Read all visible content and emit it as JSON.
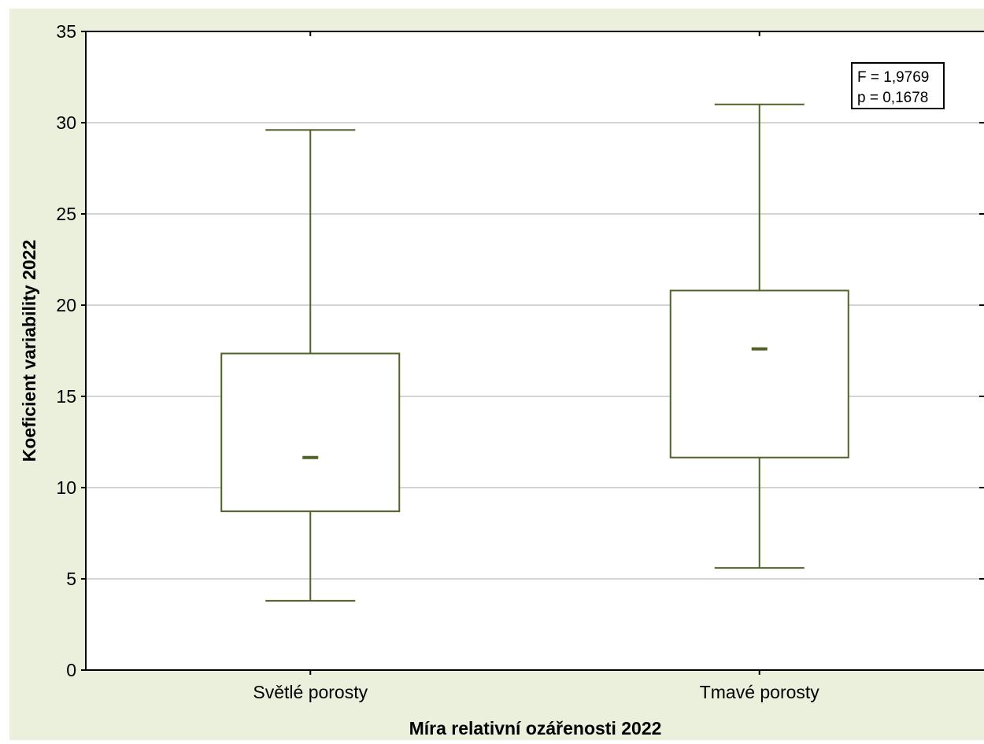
{
  "chart_data": {
    "type": "boxplot",
    "title": "",
    "xlabel": "Míra relativní ozářenosti 2022",
    "ylabel": "Koeficient variability 2022",
    "ylim": [
      0,
      35
    ],
    "yticks": [
      0,
      5,
      10,
      15,
      20,
      25,
      30,
      35
    ],
    "grid": "horizontal",
    "categories": [
      "Světlé porosty",
      "Tmavé porosty"
    ],
    "boxes": [
      {
        "category": "Světlé porosty",
        "whisker_low": 3.8,
        "q1": 8.7,
        "median": 11.65,
        "q3": 17.35,
        "whisker_high": 29.6
      },
      {
        "category": "Tmavé porosty",
        "whisker_low": 5.6,
        "q1": 11.65,
        "median": 17.6,
        "q3": 20.8,
        "whisker_high": 31.0
      }
    ],
    "annotation": [
      "F = 1,9769",
      "p = 0,1678"
    ],
    "colors": {
      "background": "#ebf0dd",
      "plot_area": "#ffffff",
      "box": "#4f6228",
      "grid": "#d4d4d4",
      "axis": "#000000"
    }
  }
}
